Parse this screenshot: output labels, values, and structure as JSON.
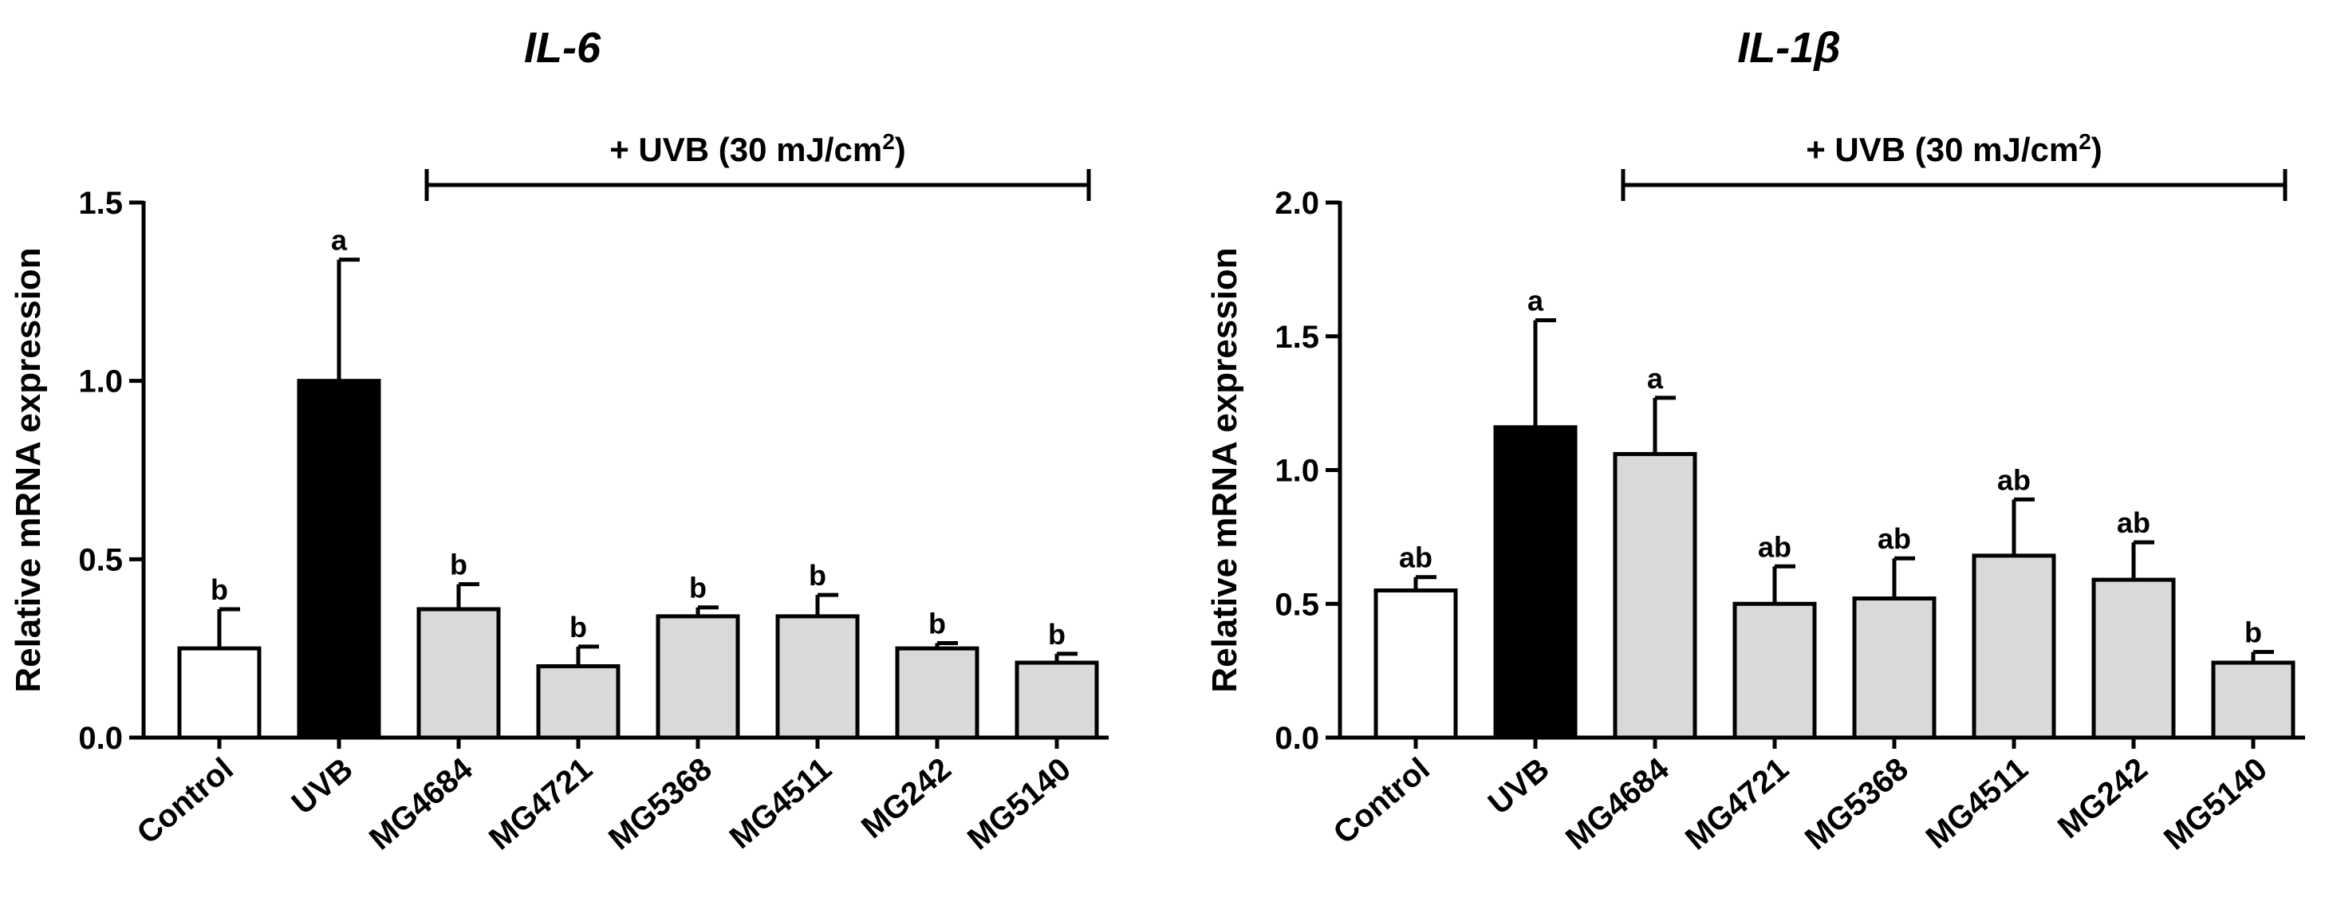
{
  "bracket": {
    "prefix": "+ UVB (30 mJ/cm",
    "sup": "2",
    "suffix": ")"
  },
  "chart_data": [
    {
      "type": "bar",
      "title": "IL-6",
      "ylabel": "Relative mRNA expression",
      "xlabel": "",
      "ylim": [
        0,
        1.5
      ],
      "yticks": [
        "0.0",
        "0.5",
        "1.0",
        "1.5"
      ],
      "categories": [
        "Control",
        "UVB",
        "MG4684",
        "MG4721",
        "MG5368",
        "MG4511",
        "MG242",
        "MG5140"
      ],
      "values": [
        0.25,
        1.0,
        0.36,
        0.2,
        0.34,
        0.34,
        0.25,
        0.21
      ],
      "errors": [
        0.11,
        0.34,
        0.07,
        0.055,
        0.025,
        0.06,
        0.015,
        0.025
      ],
      "labels": [
        "b",
        "a",
        "b",
        "b",
        "b",
        "b",
        "b",
        "b"
      ],
      "fills": [
        "#ffffff",
        "#000000",
        "#d9d9d9",
        "#d9d9d9",
        "#d9d9d9",
        "#d9d9d9",
        "#d9d9d9",
        "#d9d9d9"
      ],
      "bracket_span": [
        "MG4684",
        "MG5140"
      ]
    },
    {
      "type": "bar",
      "title": "IL-1β",
      "ylabel": "Relative mRNA expression",
      "xlabel": "",
      "ylim": [
        0,
        2.0
      ],
      "yticks": [
        "0.0",
        "0.5",
        "1.0",
        "1.5",
        "2.0"
      ],
      "categories": [
        "Control",
        "UVB",
        "MG4684",
        "MG4721",
        "MG5368",
        "MG4511",
        "MG242",
        "MG5140"
      ],
      "values": [
        0.55,
        1.16,
        1.06,
        0.5,
        0.52,
        0.68,
        0.59,
        0.28
      ],
      "errors": [
        0.05,
        0.4,
        0.21,
        0.14,
        0.15,
        0.21,
        0.14,
        0.04
      ],
      "labels": [
        "ab",
        "a",
        "a",
        "ab",
        "ab",
        "ab",
        "ab",
        "b"
      ],
      "fills": [
        "#ffffff",
        "#000000",
        "#d9d9d9",
        "#d9d9d9",
        "#d9d9d9",
        "#d9d9d9",
        "#d9d9d9",
        "#d9d9d9"
      ],
      "bracket_span": [
        "MG4684",
        "MG5140"
      ]
    }
  ]
}
